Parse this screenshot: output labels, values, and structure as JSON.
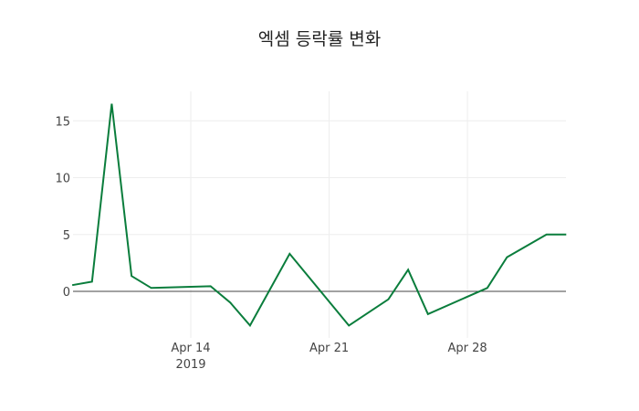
{
  "chart_data": {
    "type": "line",
    "title": "엑셈 등락률 변화",
    "xlabel": "",
    "ylabel": "",
    "x": [
      "2019-04-08",
      "2019-04-09",
      "2019-04-10",
      "2019-04-11",
      "2019-04-12",
      "2019-04-15",
      "2019-04-16",
      "2019-04-17",
      "2019-04-19",
      "2019-04-22",
      "2019-04-24",
      "2019-04-25",
      "2019-04-26",
      "2019-04-29",
      "2019-04-30",
      "2019-05-02",
      "2019-05-03"
    ],
    "series": [
      {
        "name": "등락률",
        "color": "#0a7d3c",
        "values": [
          0.55,
          0.85,
          16.5,
          1.35,
          0.3,
          0.45,
          -1.0,
          -3.0,
          3.3,
          -3.0,
          -0.7,
          1.9,
          -2.0,
          0.3,
          3.0,
          5.0,
          5.0
        ]
      }
    ],
    "ylim": [
      -3.8,
      17.5
    ],
    "yticks": [
      0,
      5,
      10,
      15
    ],
    "xticks": [
      {
        "date": "2019-04-14",
        "label": "Apr 14",
        "sublabel": "2019"
      },
      {
        "date": "2019-04-21",
        "label": "Apr 21",
        "sublabel": ""
      },
      {
        "date": "2019-04-28",
        "label": "Apr 28",
        "sublabel": ""
      }
    ],
    "grid": true,
    "legend": false
  }
}
